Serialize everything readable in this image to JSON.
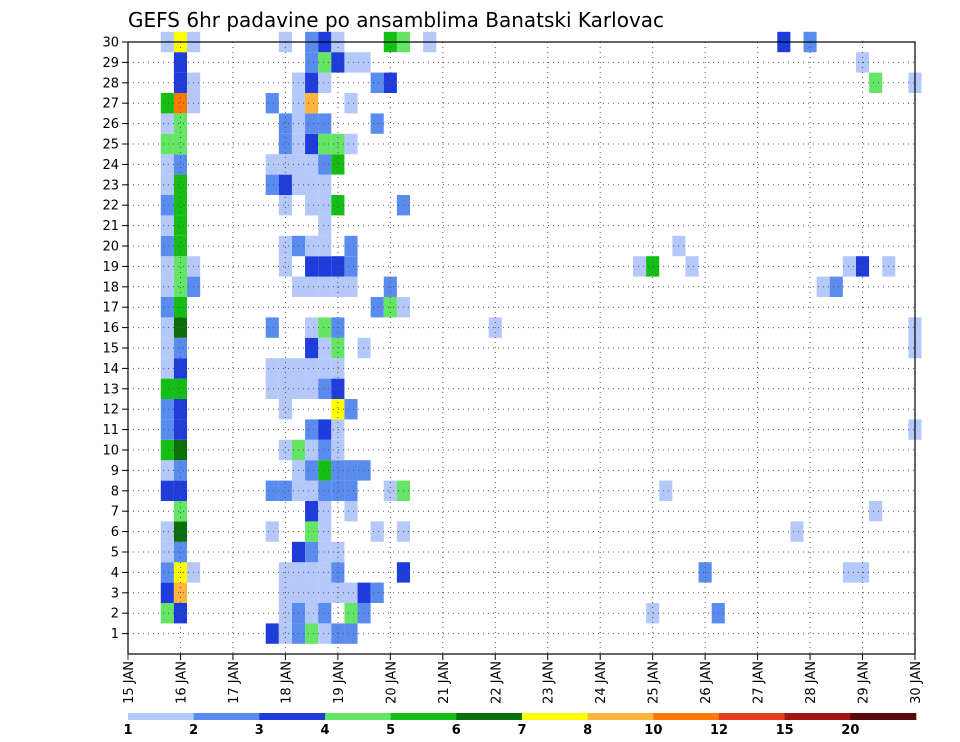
{
  "chart_data": {
    "type": "heatmap",
    "title": "GEFS 6hr padavine po ansamblima Banatski Karlovac",
    "xlabel": "",
    "ylabel": "",
    "x_ticks": [
      "15 JAN",
      "16 JAN",
      "17 JAN",
      "18 JAN",
      "19 JAN",
      "20 JAN",
      "21 JAN",
      "22 JAN",
      "23 JAN",
      "24 JAN",
      "25 JAN",
      "26 JAN",
      "27 JAN",
      "28 JAN",
      "29 JAN",
      "30 JAN"
    ],
    "x_unit": "6-hour steps from 15 JAN 00Z",
    "xlim": [
      0,
      60
    ],
    "ylim": [
      0,
      30
    ],
    "y_ticks": [
      "1",
      "2",
      "3",
      "4",
      "5",
      "6",
      "7",
      "8",
      "9",
      "10",
      "11",
      "12",
      "13",
      "14",
      "15",
      "16",
      "17",
      "18",
      "19",
      "20",
      "21",
      "22",
      "23",
      "24",
      "25",
      "26",
      "27",
      "28",
      "29",
      "30"
    ],
    "grid": true,
    "legend": {
      "placement": "bottom",
      "labels": [
        "1",
        "2",
        "3",
        "4",
        "5",
        "6",
        "7",
        "8",
        "10",
        "12",
        "15",
        "20"
      ],
      "colors": [
        "#b4c8fa",
        "#5a8cf0",
        "#1e3cdc",
        "#64e664",
        "#14be14",
        "#0a6e0a",
        "#ffff00",
        "#ffb43c",
        "#ff7800",
        "#e63c1e",
        "#a01414",
        "#5a0a0a"
      ],
      "thresholds": [
        1,
        2,
        3,
        4,
        5,
        6,
        7,
        8,
        10,
        12,
        15,
        20
      ]
    },
    "cells": [
      {
        "m": 1,
        "s": [
          [
            11,
            3
          ],
          [
            12,
            1
          ],
          [
            13,
            2
          ],
          [
            14,
            4
          ],
          [
            15,
            1
          ],
          [
            16,
            2
          ],
          [
            17,
            2
          ]
        ]
      },
      {
        "m": 2,
        "s": [
          [
            3,
            4
          ],
          [
            4,
            3
          ],
          [
            12,
            1
          ],
          [
            13,
            2
          ],
          [
            14,
            1
          ],
          [
            15,
            2
          ],
          [
            17,
            4
          ],
          [
            18,
            2
          ],
          [
            40,
            1
          ],
          [
            45,
            2
          ]
        ]
      },
      {
        "m": 3,
        "s": [
          [
            3,
            3
          ],
          [
            4,
            8
          ],
          [
            12,
            1
          ],
          [
            13,
            1
          ],
          [
            14,
            1
          ],
          [
            15,
            1
          ],
          [
            16,
            1
          ],
          [
            17,
            1
          ],
          [
            18,
            3
          ],
          [
            19,
            2
          ]
        ]
      },
      {
        "m": 4,
        "s": [
          [
            3,
            2
          ],
          [
            4,
            7
          ],
          [
            5,
            1
          ],
          [
            12,
            1
          ],
          [
            13,
            1
          ],
          [
            14,
            1
          ],
          [
            15,
            1
          ],
          [
            16,
            2
          ],
          [
            21,
            3
          ],
          [
            44,
            2
          ],
          [
            55,
            1
          ],
          [
            56,
            1
          ]
        ]
      },
      {
        "m": 5,
        "s": [
          [
            3,
            1
          ],
          [
            4,
            2
          ],
          [
            13,
            3
          ],
          [
            14,
            2
          ],
          [
            15,
            1
          ],
          [
            16,
            1
          ]
        ]
      },
      {
        "m": 6,
        "s": [
          [
            3,
            1
          ],
          [
            4,
            6
          ],
          [
            11,
            1
          ],
          [
            14,
            4
          ],
          [
            15,
            1
          ],
          [
            19,
            1
          ],
          [
            21,
            1
          ],
          [
            51,
            1
          ]
        ]
      },
      {
        "m": 7,
        "s": [
          [
            4,
            4
          ],
          [
            14,
            3
          ],
          [
            15,
            1
          ],
          [
            17,
            1
          ],
          [
            57,
            1
          ]
        ]
      },
      {
        "m": 8,
        "s": [
          [
            3,
            3
          ],
          [
            4,
            3
          ],
          [
            11,
            2
          ],
          [
            12,
            2
          ],
          [
            13,
            1
          ],
          [
            14,
            1
          ],
          [
            15,
            2
          ],
          [
            16,
            2
          ],
          [
            17,
            2
          ],
          [
            20,
            1
          ],
          [
            21,
            4
          ],
          [
            41,
            1
          ]
        ]
      },
      {
        "m": 9,
        "s": [
          [
            3,
            1
          ],
          [
            4,
            2
          ],
          [
            13,
            1
          ],
          [
            14,
            2
          ],
          [
            15,
            5
          ],
          [
            16,
            2
          ],
          [
            17,
            2
          ],
          [
            18,
            2
          ]
        ]
      },
      {
        "m": 10,
        "s": [
          [
            3,
            5
          ],
          [
            4,
            6
          ],
          [
            12,
            1
          ],
          [
            13,
            4
          ],
          [
            14,
            1
          ],
          [
            15,
            2
          ],
          [
            16,
            1
          ]
        ]
      },
      {
        "m": 11,
        "s": [
          [
            3,
            2
          ],
          [
            4,
            3
          ],
          [
            14,
            2
          ],
          [
            15,
            3
          ],
          [
            16,
            1
          ],
          [
            60,
            1
          ]
        ]
      },
      {
        "m": 12,
        "s": [
          [
            3,
            2
          ],
          [
            4,
            3
          ],
          [
            12,
            1
          ],
          [
            16,
            7
          ],
          [
            17,
            2
          ]
        ]
      },
      {
        "m": 13,
        "s": [
          [
            3,
            5
          ],
          [
            4,
            5
          ],
          [
            11,
            1
          ],
          [
            12,
            1
          ],
          [
            13,
            1
          ],
          [
            14,
            1
          ],
          [
            15,
            2
          ],
          [
            16,
            3
          ]
        ]
      },
      {
        "m": 14,
        "s": [
          [
            3,
            1
          ],
          [
            4,
            3
          ],
          [
            11,
            1
          ],
          [
            12,
            1
          ],
          [
            13,
            1
          ],
          [
            14,
            1
          ],
          [
            15,
            1
          ],
          [
            16,
            1
          ]
        ]
      },
      {
        "m": 15,
        "s": [
          [
            3,
            1
          ],
          [
            4,
            2
          ],
          [
            14,
            3
          ],
          [
            15,
            1
          ],
          [
            16,
            4
          ],
          [
            18,
            1
          ],
          [
            60,
            1
          ]
        ]
      },
      {
        "m": 16,
        "s": [
          [
            3,
            1
          ],
          [
            4,
            6
          ],
          [
            11,
            2
          ],
          [
            14,
            1
          ],
          [
            15,
            4
          ],
          [
            16,
            2
          ],
          [
            28,
            1
          ],
          [
            60,
            1
          ]
        ]
      },
      {
        "m": 17,
        "s": [
          [
            3,
            2
          ],
          [
            4,
            5
          ],
          [
            19,
            2
          ],
          [
            20,
            4
          ],
          [
            21,
            1
          ]
        ]
      },
      {
        "m": 18,
        "s": [
          [
            3,
            1
          ],
          [
            4,
            4
          ],
          [
            5,
            2
          ],
          [
            13,
            1
          ],
          [
            14,
            1
          ],
          [
            15,
            1
          ],
          [
            16,
            1
          ],
          [
            17,
            1
          ],
          [
            20,
            2
          ],
          [
            53,
            1
          ],
          [
            54,
            2
          ]
        ]
      },
      {
        "m": 19,
        "s": [
          [
            3,
            1
          ],
          [
            4,
            4
          ],
          [
            5,
            1
          ],
          [
            12,
            1
          ],
          [
            14,
            3
          ],
          [
            15,
            3
          ],
          [
            16,
            3
          ],
          [
            17,
            2
          ],
          [
            39,
            1
          ],
          [
            40,
            5
          ],
          [
            43,
            1
          ],
          [
            55,
            1
          ],
          [
            56,
            3
          ],
          [
            58,
            1
          ]
        ]
      },
      {
        "m": 20,
        "s": [
          [
            3,
            2
          ],
          [
            4,
            5
          ],
          [
            12,
            1
          ],
          [
            13,
            2
          ],
          [
            14,
            1
          ],
          [
            15,
            1
          ],
          [
            17,
            2
          ],
          [
            42,
            1
          ]
        ]
      },
      {
        "m": 21,
        "s": [
          [
            3,
            1
          ],
          [
            4,
            5
          ],
          [
            15,
            1
          ]
        ]
      },
      {
        "m": 22,
        "s": [
          [
            3,
            2
          ],
          [
            4,
            5
          ],
          [
            12,
            1
          ],
          [
            14,
            1
          ],
          [
            15,
            1
          ],
          [
            16,
            5
          ],
          [
            21,
            2
          ]
        ]
      },
      {
        "m": 23,
        "s": [
          [
            3,
            1
          ],
          [
            4,
            5
          ],
          [
            11,
            2
          ],
          [
            12,
            3
          ],
          [
            13,
            1
          ],
          [
            14,
            1
          ],
          [
            15,
            1
          ]
        ]
      },
      {
        "m": 24,
        "s": [
          [
            3,
            1
          ],
          [
            4,
            2
          ],
          [
            11,
            1
          ],
          [
            12,
            1
          ],
          [
            13,
            1
          ],
          [
            14,
            1
          ],
          [
            15,
            2
          ],
          [
            16,
            5
          ]
        ]
      },
      {
        "m": 25,
        "s": [
          [
            3,
            4
          ],
          [
            4,
            4
          ],
          [
            12,
            2
          ],
          [
            13,
            1
          ],
          [
            14,
            3
          ],
          [
            15,
            4
          ],
          [
            16,
            4
          ],
          [
            17,
            1
          ]
        ]
      },
      {
        "m": 26,
        "s": [
          [
            3,
            1
          ],
          [
            4,
            4
          ],
          [
            12,
            2
          ],
          [
            13,
            1
          ],
          [
            14,
            2
          ],
          [
            15,
            2
          ],
          [
            19,
            2
          ]
        ]
      },
      {
        "m": 27,
        "s": [
          [
            3,
            5
          ],
          [
            4,
            9
          ],
          [
            5,
            1
          ],
          [
            11,
            2
          ],
          [
            13,
            1
          ],
          [
            14,
            8
          ],
          [
            17,
            1
          ]
        ]
      },
      {
        "m": 28,
        "s": [
          [
            4,
            3
          ],
          [
            5,
            1
          ],
          [
            13,
            1
          ],
          [
            14,
            3
          ],
          [
            15,
            1
          ],
          [
            19,
            2
          ],
          [
            20,
            3
          ],
          [
            57,
            4
          ],
          [
            60,
            1
          ]
        ]
      },
      {
        "m": 29,
        "s": [
          [
            4,
            3
          ],
          [
            14,
            2
          ],
          [
            15,
            4
          ],
          [
            16,
            3
          ],
          [
            17,
            1
          ],
          [
            18,
            1
          ],
          [
            56,
            1
          ]
        ]
      },
      {
        "m": 30,
        "s": [
          [
            3,
            1
          ],
          [
            4,
            7
          ],
          [
            5,
            1
          ],
          [
            12,
            1
          ],
          [
            14,
            2
          ],
          [
            15,
            3
          ],
          [
            16,
            1
          ],
          [
            20,
            5
          ],
          [
            21,
            4
          ],
          [
            23,
            1
          ],
          [
            50,
            3
          ],
          [
            52,
            2
          ]
        ]
      }
    ]
  }
}
